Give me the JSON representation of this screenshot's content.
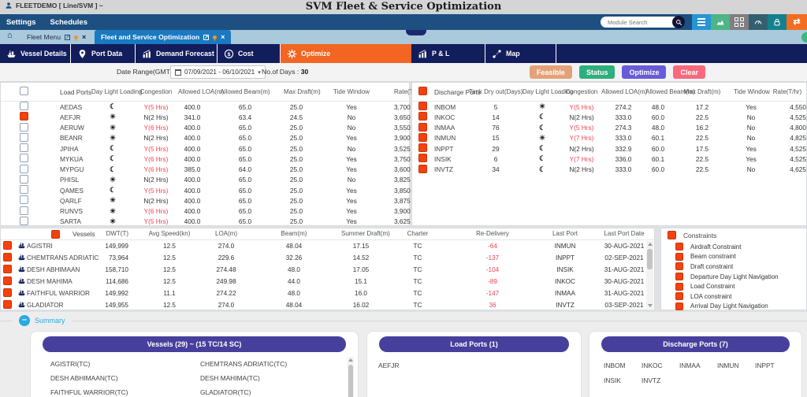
{
  "topbar": {
    "user_label": "FLEETDEMO [ Line/SVM ] ~",
    "app_title": "SVM Fleet & Service Optimization"
  },
  "menubar": {
    "items": [
      "Settings",
      "Schedules"
    ],
    "search_placeholder": "Module Search"
  },
  "tabstrip": {
    "tabs": [
      {
        "label": "Fleet Menu",
        "active": false
      },
      {
        "label": "Fleet and Service Optimization",
        "active": true
      }
    ]
  },
  "icons": {
    "home": "⌂",
    "caret_down": "▾",
    "close": "×",
    "external_link": "↗",
    "sync": "⇄",
    "collapse": "–"
  },
  "glyphs": {
    "day": "☀",
    "night": "☾"
  },
  "navtabs": {
    "tabs": [
      {
        "label": "Vessel Details",
        "icon": "ship-icon",
        "active": false
      },
      {
        "label": "Port Data",
        "icon": "location-pin-icon",
        "active": false
      },
      {
        "label": "Demand Forecast",
        "icon": "chart-icon",
        "active": false
      },
      {
        "label": "Cost",
        "icon": "dollar-icon",
        "active": false
      },
      {
        "label": "Optimize",
        "icon": "gear-icon",
        "active": true
      },
      {
        "label": "P & L",
        "icon": "chart-icon",
        "active": false
      },
      {
        "label": "Map",
        "icon": "map-route-icon",
        "active": false
      }
    ]
  },
  "toolbar": {
    "date_label": "Date Range(GMT)",
    "date_value": "07/09/2021 - 06/10/2021",
    "days_label": "No.of Days :",
    "days_value": "30",
    "buttons": [
      {
        "label": "Feasible",
        "color": "#e4a279"
      },
      {
        "label": "Status",
        "color": "#2fae7e"
      },
      {
        "label": "Optimize",
        "color": "#675bd8"
      },
      {
        "label": "Clear",
        "color": "#f9697e"
      }
    ]
  },
  "load_ports": {
    "title": "Load Ports",
    "header_checked": false,
    "columns": [
      "Day Light\nLoading",
      "Congestion",
      "Allowed\nLOA(m)",
      "Allowed\nBeam(m)",
      "Max\nDraft(m)",
      "Tide Window",
      "Rate(T/hr)"
    ],
    "rows": [
      {
        "name": "AEDAS",
        "checked": false,
        "daylight": "night",
        "congestion": "Y(5 Hrs)",
        "loa": "400.0",
        "beam": "65.0",
        "draft": "25.0",
        "tide": "Yes",
        "rate": "3,700"
      },
      {
        "name": "AEFJR",
        "checked": true,
        "daylight": "day",
        "congestion": "N(2 Hrs)",
        "loa": "341.0",
        "beam": "63.4",
        "draft": "24.5",
        "tide": "No",
        "rate": "3,650"
      },
      {
        "name": "AERUW",
        "checked": false,
        "daylight": "day",
        "congestion": "Y(6 Hrs)",
        "loa": "400.0",
        "beam": "65.0",
        "draft": "25.0",
        "tide": "No",
        "rate": "3,550"
      },
      {
        "name": "BEANR",
        "checked": false,
        "daylight": "day",
        "congestion": "N(2 Hrs)",
        "loa": "400.0",
        "beam": "65.0",
        "draft": "25.0",
        "tide": "Yes",
        "rate": "3,900"
      },
      {
        "name": "JPIHA",
        "checked": false,
        "daylight": "night",
        "congestion": "Y(5 Hrs)",
        "loa": "400.0",
        "beam": "65.0",
        "draft": "25.0",
        "tide": "No",
        "rate": "3,525"
      },
      {
        "name": "MYKUA",
        "checked": false,
        "daylight": "night",
        "congestion": "Y(6 Hrs)",
        "loa": "400.0",
        "beam": "65.0",
        "draft": "25.0",
        "tide": "Yes",
        "rate": "3,750"
      },
      {
        "name": "MYPGU",
        "checked": false,
        "daylight": "night",
        "congestion": "Y(6 Hrs)",
        "loa": "385.0",
        "beam": "64.0",
        "draft": "25.0",
        "tide": "Yes",
        "rate": "3,600"
      },
      {
        "name": "PHISL",
        "checked": false,
        "daylight": "day",
        "congestion": "N(2 Hrs)",
        "loa": "400.0",
        "beam": "65.0",
        "draft": "25.0",
        "tide": "No",
        "rate": "3,825"
      },
      {
        "name": "QAMES",
        "checked": false,
        "daylight": "night",
        "congestion": "Y(5 Hrs)",
        "loa": "400.0",
        "beam": "65.0",
        "draft": "25.0",
        "tide": "Yes",
        "rate": "3,850"
      },
      {
        "name": "QARLF",
        "checked": false,
        "daylight": "day",
        "congestion": "N(2 Hrs)",
        "loa": "400.0",
        "beam": "65.0",
        "draft": "25.0",
        "tide": "Yes",
        "rate": "3,875"
      },
      {
        "name": "RUNVS",
        "checked": false,
        "daylight": "day",
        "congestion": "Y(6 Hrs)",
        "loa": "400.0",
        "beam": "65.0",
        "draft": "25.0",
        "tide": "Yes",
        "rate": "3,900"
      },
      {
        "name": "SARTA",
        "checked": false,
        "daylight": "day",
        "congestion": "Y(5 Hrs)",
        "loa": "400.0",
        "beam": "65.0",
        "draft": "25.0",
        "tide": "Yes",
        "rate": "3,625"
      }
    ]
  },
  "discharge_ports": {
    "title": "Discharge Ports",
    "header_checked": true,
    "columns": [
      "Tank Dry\nout(Days)",
      "Day Light\nLoading",
      "Congestion",
      "Allowed\nLOA(m)",
      "Allowed\nBeam(m)",
      "Max\nDraft(m)",
      "Tide Window",
      "Rate(T/hr)"
    ],
    "rows": [
      {
        "name": "INBOM",
        "checked": true,
        "tank_dry": "5",
        "daylight": "day",
        "congestion": "Y(5 Hrs)",
        "loa": "274.2",
        "beam": "48.0",
        "draft": "17.2",
        "tide": "Yes",
        "rate": "4,550"
      },
      {
        "name": "INKOC",
        "checked": true,
        "tank_dry": "14",
        "daylight": "night",
        "congestion": "N(2 Hrs)",
        "loa": "333.0",
        "beam": "60.0",
        "draft": "22.5",
        "tide": "No",
        "rate": "4,525"
      },
      {
        "name": "INMAA",
        "checked": true,
        "tank_dry": "76",
        "daylight": "night",
        "congestion": "Y(5 Hrs)",
        "loa": "274.3",
        "beam": "48.0",
        "draft": "16.2",
        "tide": "No",
        "rate": "4,800"
      },
      {
        "name": "INMUN",
        "checked": true,
        "tank_dry": "15",
        "daylight": "day",
        "congestion": "Y(7 Hrs)",
        "loa": "333.0",
        "beam": "60.1",
        "draft": "22.5",
        "tide": "No",
        "rate": "4,825"
      },
      {
        "name": "INPPT",
        "checked": true,
        "tank_dry": "29",
        "daylight": "night",
        "congestion": "N(2 Hrs)",
        "loa": "332.9",
        "beam": "60.0",
        "draft": "17.5",
        "tide": "Yes",
        "rate": "4,525"
      },
      {
        "name": "INSIK",
        "checked": true,
        "tank_dry": "6",
        "daylight": "night",
        "congestion": "Y(7 Hrs)",
        "loa": "336.0",
        "beam": "60.1",
        "draft": "22.5",
        "tide": "Yes",
        "rate": "4,525"
      },
      {
        "name": "INVTZ",
        "checked": true,
        "tank_dry": "34",
        "daylight": "night",
        "congestion": "N(2 Hrs)",
        "loa": "333.0",
        "beam": "60.0",
        "draft": "22.5",
        "tide": "No",
        "rate": "4,625"
      }
    ]
  },
  "vessels": {
    "title": "Vessels",
    "header_checked": true,
    "columns": [
      "DWT(T)",
      "Avg Speed(kn)",
      "LOA(m)",
      "Beam(m)",
      "Summer Draft(m)",
      "Charter",
      "Re-Delivery",
      "Last Port",
      "Last Port Date"
    ],
    "rows": [
      {
        "name": "AGISTRI",
        "checked": true,
        "dwt": "149,999",
        "speed": "12.5",
        "loa": "274.0",
        "beam": "48.04",
        "summer_draft": "17.15",
        "charter": "TC",
        "re_delivery": "-64",
        "last_port": "INMUN",
        "last_port_date": "30-AUG-2021"
      },
      {
        "name": "CHEMTRANS ADRIATIC",
        "checked": true,
        "dwt": "73,964",
        "speed": "12.5",
        "loa": "229.6",
        "beam": "32.26",
        "summer_draft": "14.52",
        "charter": "TC",
        "re_delivery": "-137",
        "last_port": "INPPT",
        "last_port_date": "02-SEP-2021"
      },
      {
        "name": "DESH ABHIMAAN",
        "checked": true,
        "dwt": "158,710",
        "speed": "12.5",
        "loa": "274.48",
        "beam": "48.0",
        "summer_draft": "17.05",
        "charter": "TC",
        "re_delivery": "-104",
        "last_port": "INSIK",
        "last_port_date": "31-AUG-2021"
      },
      {
        "name": "DESH MAHIMA",
        "checked": true,
        "dwt": "114,686",
        "speed": "12.5",
        "loa": "249.98",
        "beam": "44.0",
        "summer_draft": "15.1",
        "charter": "TC",
        "re_delivery": "-89",
        "last_port": "INKOC",
        "last_port_date": "30-AUG-2021"
      },
      {
        "name": "FAITHFUL WARRIOR",
        "checked": true,
        "dwt": "149,992",
        "speed": "11.1",
        "loa": "274.22",
        "beam": "48.0",
        "summer_draft": "16.0",
        "charter": "TC",
        "re_delivery": "-147",
        "last_port": "INMAA",
        "last_port_date": "31-AUG-2021"
      },
      {
        "name": "GLADIATOR",
        "checked": true,
        "dwt": "149,955",
        "speed": "12.5",
        "loa": "274.0",
        "beam": "48.04",
        "summer_draft": "16.02",
        "charter": "TC",
        "re_delivery": "36",
        "last_port": "INVTZ",
        "last_port_date": "03-SEP-2021"
      }
    ]
  },
  "constraints": {
    "title": "Constraints",
    "header_checked": true,
    "items": [
      "Airdraft Constraint",
      "Beam constraint",
      "Draft constraint",
      "Departure Day Light Navigation",
      "Load Constraint",
      "LOA constraint",
      "Arrival Day Light Navigation"
    ]
  },
  "summary": {
    "title": "Summary",
    "cards": [
      {
        "title": "Vessels (29) ~ (15 TC/14 SC)",
        "items": [
          "AGISTRI(TC)",
          "CHEMTRANS ADRIATIC(TC)",
          "DESH ABHIMAAN(TC)",
          "DESH MAHIMA(TC)",
          "FAITHFUL WARRIOR(TC)",
          "GLADIATOR(TC)"
        ]
      },
      {
        "title": "Load Ports (1)",
        "items": [
          "AEFJR"
        ]
      },
      {
        "title": "Discharge Ports (7)",
        "items": [
          "INBOM",
          "INKOC",
          "INMAA",
          "INMUN",
          "INPPT",
          "INSIK",
          "INVTZ"
        ]
      }
    ]
  }
}
